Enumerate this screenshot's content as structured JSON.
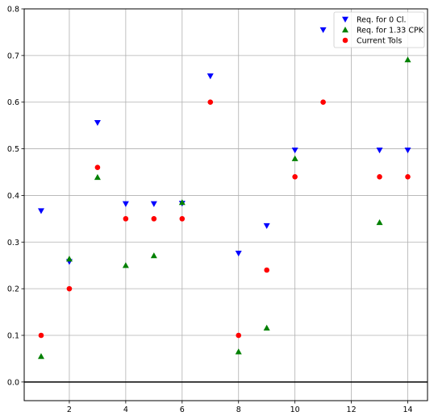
{
  "chart_data": {
    "type": "scatter",
    "title": "",
    "xlabel": "",
    "ylabel": "",
    "xlim": [
      0.4,
      14.7
    ],
    "ylim": [
      -0.04,
      0.8
    ],
    "xticks": [
      2,
      4,
      6,
      8,
      10,
      12,
      14
    ],
    "xtick_labels": [
      "2",
      "4",
      "6",
      "8",
      "10",
      "12",
      "14"
    ],
    "yticks": [
      0.0,
      0.1,
      0.2,
      0.3,
      0.4,
      0.5,
      0.6,
      0.7,
      0.8
    ],
    "ytick_labels": [
      "0.0",
      "0.1",
      "0.2",
      "0.3",
      "0.4",
      "0.5",
      "0.6",
      "0.7",
      "0.8"
    ],
    "grid": true,
    "hline": 0.0,
    "legend_position": "top-right",
    "series": [
      {
        "name": "Req. for 0 Cl.",
        "marker": "triangle-down",
        "color": "#0000ff",
        "x": [
          1,
          2,
          3,
          4,
          5,
          6,
          7,
          8,
          9,
          10,
          11,
          13,
          14
        ],
        "y": [
          0.367,
          0.258,
          0.556,
          0.382,
          0.382,
          0.383,
          0.656,
          0.276,
          0.335,
          0.497,
          0.755,
          0.497,
          0.497
        ]
      },
      {
        "name": "Req. for 1.33 CPK",
        "marker": "triangle-up",
        "color": "#008000",
        "x": [
          1,
          2,
          3,
          4,
          5,
          6,
          8,
          9,
          10,
          13,
          14
        ],
        "y": [
          0.055,
          0.264,
          0.439,
          0.25,
          0.271,
          0.385,
          0.065,
          0.116,
          0.479,
          0.342,
          0.691
        ]
      },
      {
        "name": "Current Tols",
        "marker": "circle",
        "color": "#ff0000",
        "x": [
          1,
          2,
          3,
          4,
          5,
          6,
          7,
          8,
          9,
          10,
          11,
          13,
          14
        ],
        "y": [
          0.1,
          0.2,
          0.46,
          0.35,
          0.35,
          0.35,
          0.6,
          0.1,
          0.24,
          0.44,
          0.6,
          0.44,
          0.44
        ]
      }
    ]
  }
}
